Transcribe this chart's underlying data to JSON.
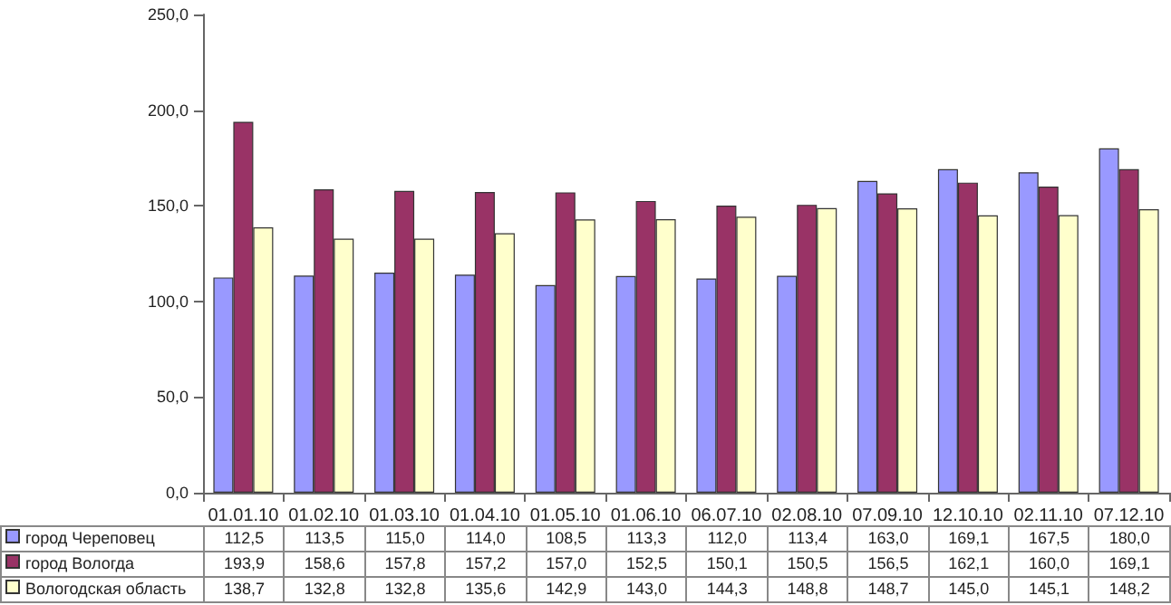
{
  "chart_data": {
    "type": "bar",
    "categories": [
      "01.01.10",
      "01.02.10",
      "01.03.10",
      "01.04.10",
      "01.05.10",
      "01.06.10",
      "06.07.10",
      "02.08.10",
      "07.09.10",
      "12.10.10",
      "02.11.10",
      "07.12.10"
    ],
    "series": [
      {
        "name": "город Череповец",
        "color": "#9999ff",
        "values": [
          112.5,
          113.5,
          115.0,
          114.0,
          108.5,
          113.3,
          112.0,
          113.4,
          163.0,
          169.1,
          167.5,
          180.0
        ],
        "value_labels": [
          "112,5",
          "113,5",
          "115,0",
          "114,0",
          "108,5",
          "113,3",
          "112,0",
          "113,4",
          "163,0",
          "169,1",
          "167,5",
          "180,0"
        ]
      },
      {
        "name": "город Вологда",
        "color": "#993366",
        "values": [
          193.9,
          158.6,
          157.8,
          157.2,
          157.0,
          152.5,
          150.1,
          150.5,
          156.5,
          162.1,
          160.0,
          169.1
        ],
        "value_labels": [
          "193,9",
          "158,6",
          "157,8",
          "157,2",
          "157,0",
          "152,5",
          "150,1",
          "150,5",
          "156,5",
          "162,1",
          "160,0",
          "169,1"
        ]
      },
      {
        "name": "Вологодская область",
        "color": "#ffffcc",
        "values": [
          138.7,
          132.8,
          132.8,
          135.6,
          142.9,
          143.0,
          144.3,
          148.8,
          148.7,
          145.0,
          145.1,
          148.2
        ],
        "value_labels": [
          "138,7",
          "132,8",
          "132,8",
          "135,6",
          "142,9",
          "143,0",
          "144,3",
          "148,8",
          "148,7",
          "145,0",
          "145,1",
          "148,2"
        ]
      }
    ],
    "ylim": [
      0,
      250
    ],
    "yticks": [
      {
        "value": 0,
        "label": "0,0"
      },
      {
        "value": 50,
        "label": "50,0"
      },
      {
        "value": 100,
        "label": "100,0"
      },
      {
        "value": 150,
        "label": "150,0"
      },
      {
        "value": 200,
        "label": "200,0"
      },
      {
        "value": 250,
        "label": "250,0"
      }
    ],
    "grid": false,
    "legend": "bottom left"
  }
}
